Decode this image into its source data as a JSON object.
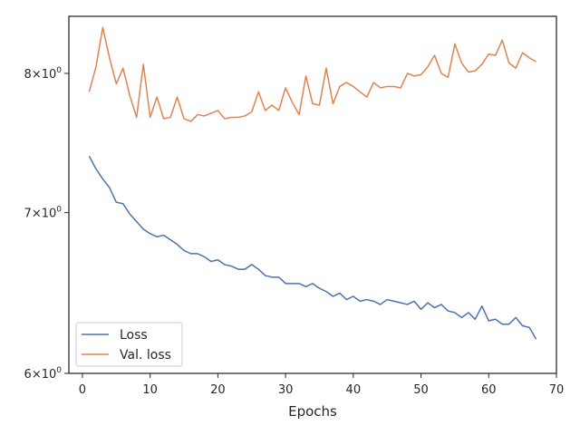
{
  "chart_data": {
    "type": "line",
    "title": "",
    "xlabel": "Epochs",
    "ylabel": "",
    "xlim": [
      -2,
      70
    ],
    "ylim": [
      6.0,
      8.45
    ],
    "yscale": "log",
    "grid": false,
    "legend_position": "lower-left",
    "x_ticks": [
      0,
      10,
      20,
      30,
      40,
      50,
      60,
      70
    ],
    "x_tick_labels": [
      "0",
      "10",
      "20",
      "30",
      "40",
      "50",
      "60",
      "70"
    ],
    "y_ticks": [
      {
        "value": 6,
        "base": "6",
        "mult": "10",
        "exp": "0"
      },
      {
        "value": 7,
        "base": "7",
        "mult": "10",
        "exp": "0"
      },
      {
        "value": 8,
        "base": "8",
        "mult": "10",
        "exp": "0"
      }
    ],
    "x": [
      1,
      2,
      3,
      4,
      5,
      6,
      7,
      8,
      9,
      10,
      11,
      12,
      13,
      14,
      15,
      16,
      17,
      18,
      19,
      20,
      21,
      22,
      23,
      24,
      25,
      26,
      27,
      28,
      29,
      30,
      31,
      32,
      33,
      34,
      35,
      36,
      37,
      38,
      39,
      40,
      41,
      42,
      43,
      44,
      45,
      46,
      47,
      48,
      49,
      50,
      51,
      52,
      53,
      54,
      55,
      56,
      57,
      58,
      59,
      60,
      61,
      62,
      63,
      64,
      65,
      66,
      67
    ],
    "series": [
      {
        "name": "Loss",
        "color": "#4c72b0",
        "values": [
          7.39,
          7.3,
          7.23,
          7.17,
          7.07,
          7.06,
          6.99,
          6.94,
          6.89,
          6.86,
          6.84,
          6.85,
          6.82,
          6.79,
          6.75,
          6.73,
          6.73,
          6.71,
          6.68,
          6.69,
          6.66,
          6.65,
          6.63,
          6.63,
          6.66,
          6.63,
          6.59,
          6.58,
          6.58,
          6.54,
          6.54,
          6.54,
          6.52,
          6.54,
          6.51,
          6.49,
          6.46,
          6.48,
          6.44,
          6.46,
          6.43,
          6.44,
          6.43,
          6.41,
          6.44,
          6.43,
          6.42,
          6.41,
          6.43,
          6.38,
          6.42,
          6.39,
          6.41,
          6.37,
          6.36,
          6.33,
          6.36,
          6.32,
          6.4,
          6.31,
          6.32,
          6.29,
          6.29,
          6.33,
          6.28,
          6.27,
          6.2
        ]
      },
      {
        "name": "Val. loss",
        "color": "#dd8452",
        "values": [
          7.86,
          8.05,
          8.36,
          8.12,
          7.92,
          8.04,
          7.83,
          7.67,
          8.07,
          7.67,
          7.82,
          7.66,
          7.67,
          7.82,
          7.66,
          7.64,
          7.69,
          7.68,
          7.7,
          7.72,
          7.66,
          7.67,
          7.67,
          7.68,
          7.71,
          7.86,
          7.72,
          7.76,
          7.72,
          7.89,
          7.78,
          7.69,
          7.98,
          7.77,
          7.76,
          8.04,
          7.77,
          7.9,
          7.93,
          7.9,
          7.86,
          7.82,
          7.93,
          7.89,
          7.9,
          7.9,
          7.89,
          8.0,
          7.98,
          7.99,
          8.05,
          8.14,
          8.0,
          7.97,
          8.23,
          8.08,
          8.01,
          8.02,
          8.07,
          8.15,
          8.14,
          8.26,
          8.08,
          8.04,
          8.16,
          8.12,
          8.09
        ]
      }
    ]
  }
}
